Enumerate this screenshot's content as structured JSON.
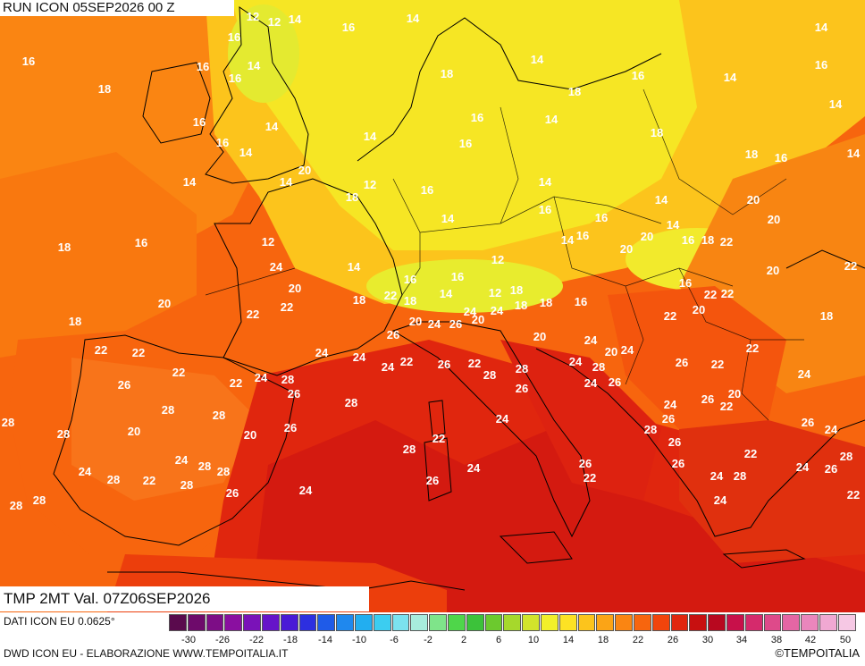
{
  "header": {
    "run_label": "RUN ICON 05SEP2026 00 Z"
  },
  "footer": {
    "variable_label": "TMP 2MT Val. 07Z06SEP2026",
    "dati_label": "DATI ICON EU 0.0625°",
    "credit_left": "DWD ICON EU - ELABORAZIONE WWW.TEMPOITALIA.IT",
    "credit_right": "©TEMPOITALIA"
  },
  "legend": {
    "tick_labels": [
      "-30",
      "-26",
      "-22",
      "-18",
      "-14",
      "-10",
      "-6",
      "-2",
      "2",
      "6",
      "10",
      "14",
      "18",
      "22",
      "26",
      "30",
      "34",
      "38",
      "42",
      "50"
    ],
    "colors": [
      "#5a0a4d",
      "#6e0a6b",
      "#7d0d86",
      "#8a0fa0",
      "#7a12b8",
      "#6614c9",
      "#4a1ad6",
      "#2d2fe0",
      "#1f5be8",
      "#1f88ee",
      "#22aef0",
      "#3ccdf0",
      "#7be2ef",
      "#a8ecdc",
      "#7fe48a",
      "#4fd64a",
      "#3cc23a",
      "#6cc92e",
      "#a6d82c",
      "#d2e42c",
      "#f2f02a",
      "#fde224",
      "#fcc41c",
      "#fba416",
      "#fa8512",
      "#f7650e",
      "#f1440c",
      "#e0260e",
      "#c81010",
      "#b8081f",
      "#c8104a",
      "#d52a6c",
      "#de4a8a",
      "#e566a4",
      "#ea86bc",
      "#f0a8d2",
      "#f6c8e4"
    ]
  },
  "map": {
    "temperature_labels": [
      "12",
      "12",
      "14",
      "14",
      "14",
      "16",
      "16",
      "16",
      "18",
      "16",
      "16",
      "14",
      "16",
      "18",
      "14",
      "18",
      "16",
      "14",
      "14",
      "16",
      "16",
      "14",
      "16",
      "14",
      "14",
      "14",
      "16",
      "18",
      "18",
      "16",
      "14",
      "14",
      "14",
      "20",
      "18",
      "12",
      "16",
      "14",
      "14",
      "20",
      "20",
      "14",
      "16",
      "16",
      "14",
      "12",
      "16",
      "18",
      "14",
      "16",
      "20",
      "20",
      "16",
      "18",
      "22",
      "22",
      "20",
      "24",
      "14",
      "16",
      "16",
      "12",
      "14",
      "12",
      "18",
      "16",
      "20",
      "22",
      "18",
      "18",
      "18",
      "22",
      "22",
      "20",
      "16",
      "22",
      "22",
      "24",
      "24",
      "18",
      "20",
      "22",
      "18",
      "18",
      "20",
      "20",
      "24",
      "26",
      "24",
      "22",
      "22",
      "20",
      "20",
      "24",
      "24",
      "24",
      "26",
      "24",
      "22",
      "22",
      "26",
      "22",
      "26",
      "22",
      "22",
      "22",
      "24",
      "28",
      "28",
      "28",
      "24",
      "28",
      "26",
      "24",
      "26",
      "24",
      "26",
      "26",
      "20",
      "24",
      "22",
      "28",
      "26",
      "28",
      "28",
      "26",
      "26",
      "26",
      "24",
      "28",
      "28",
      "24",
      "28",
      "20",
      "20",
      "22",
      "26",
      "22",
      "24",
      "28",
      "28",
      "28",
      "26",
      "26",
      "24",
      "26",
      "24",
      "28",
      "24",
      "22",
      "28",
      "24",
      "28",
      "22",
      "28",
      "26",
      "26",
      "24",
      "24",
      "22",
      "28",
      "28"
    ]
  }
}
